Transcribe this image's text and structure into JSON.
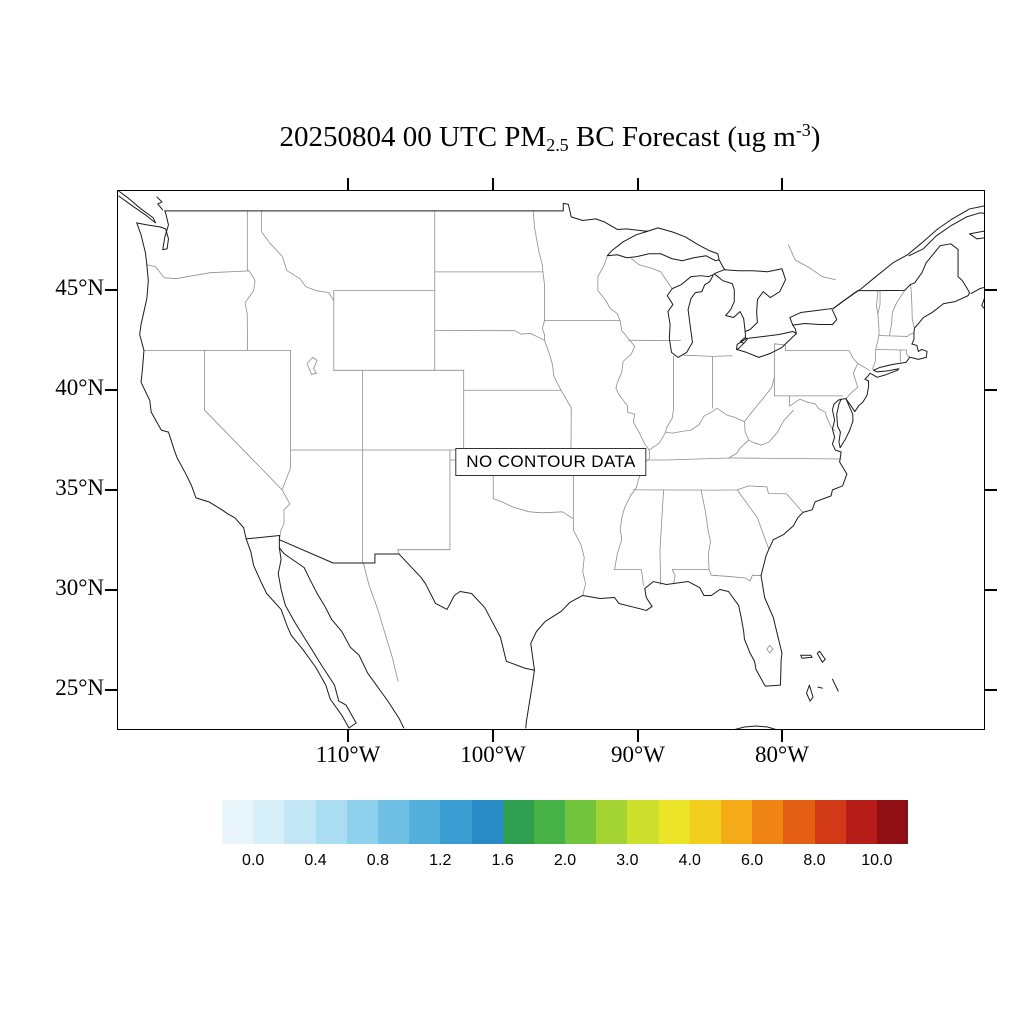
{
  "title": {
    "prefix": "20250804 00 UTC PM",
    "subscript": "2.5",
    "middle": " BC Forecast (ug m",
    "superscript": "-3",
    "suffix": ")"
  },
  "map": {
    "no_data_label": "NO CONTOUR DATA",
    "lat_labels": [
      "45°N",
      "40°N",
      "35°N",
      "30°N",
      "25°N"
    ],
    "lon_labels": [
      "110°W",
      "100°W",
      "90°W",
      "80°W"
    ]
  },
  "colorbar": {
    "labels": [
      "0.0",
      "0.4",
      "0.8",
      "1.2",
      "1.6",
      "2.0",
      "3.0",
      "4.0",
      "6.0",
      "8.0",
      "10.0"
    ],
    "colors": [
      "#e8f6fc",
      "#d7eff9",
      "#c3e6f6",
      "#aadcf2",
      "#8fd0ed",
      "#70c0e5",
      "#53afdc",
      "#3a9ed3",
      "#2a8ac6",
      "#2f9e4f",
      "#46b146",
      "#72c43c",
      "#a3d433",
      "#cfe02c",
      "#ece426",
      "#f2ce1f",
      "#f5ab18",
      "#ef8414",
      "#e45f14",
      "#d23a17",
      "#b61d18",
      "#8f0f14"
    ],
    "line_colors": {
      "coast": "#1b1b1b",
      "state_border": "#8d8d8d"
    }
  }
}
